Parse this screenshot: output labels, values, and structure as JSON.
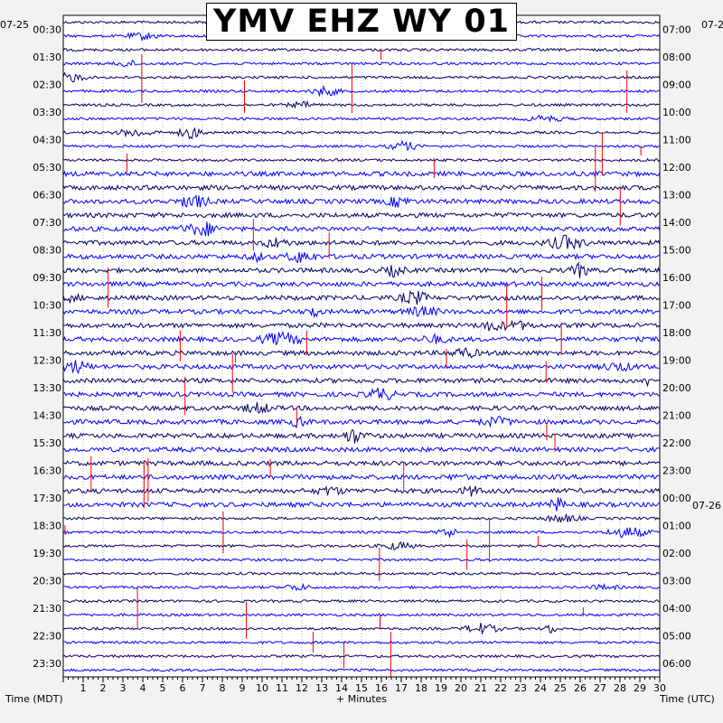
{
  "chart_data": {
    "type": "line",
    "title": "YMV EHZ WY 01",
    "xlabel": "+ Minutes",
    "left_axis_label": "Time (MDT)",
    "right_axis_label": "Time (UTC)",
    "left_date_label": "07-25",
    "right_date_label_top": "07-2",
    "right_date_label_mid": "07-26",
    "x_ticks": [
      "1",
      "2",
      "3",
      "4",
      "5",
      "6",
      "7",
      "8",
      "9",
      "10",
      "11",
      "12",
      "13",
      "14",
      "15",
      "16",
      "17",
      "18",
      "19",
      "20",
      "21",
      "22",
      "23",
      "24",
      "25",
      "26",
      "27",
      "28",
      "29",
      "30"
    ],
    "xlim": [
      0,
      30
    ],
    "left_hour_labels": [
      "00:30",
      "01:30",
      "02:30",
      "03:30",
      "04:30",
      "05:30",
      "06:30",
      "07:30",
      "08:30",
      "09:30",
      "10:30",
      "11:30",
      "12:30",
      "13:30",
      "14:30",
      "15:30",
      "16:30",
      "17:30",
      "18:30",
      "19:30",
      "20:30",
      "21:30",
      "22:30",
      "23:30"
    ],
    "right_hour_labels": [
      "07:00",
      "08:00",
      "09:00",
      "10:00",
      "11:00",
      "12:00",
      "13:00",
      "14:00",
      "15:00",
      "16:00",
      "17:00",
      "18:00",
      "19:00",
      "20:00",
      "21:00",
      "22:00",
      "23:00",
      "00:00",
      "01:00",
      "02:00",
      "03:00",
      "04:00",
      "05:00",
      "06:00"
    ],
    "traces_per_hour": 2,
    "trace_colors": [
      "#000066",
      "#0000ff",
      "#000066",
      "#0000ff"
    ],
    "clip_color": "#ff0000",
    "grid": true
  }
}
